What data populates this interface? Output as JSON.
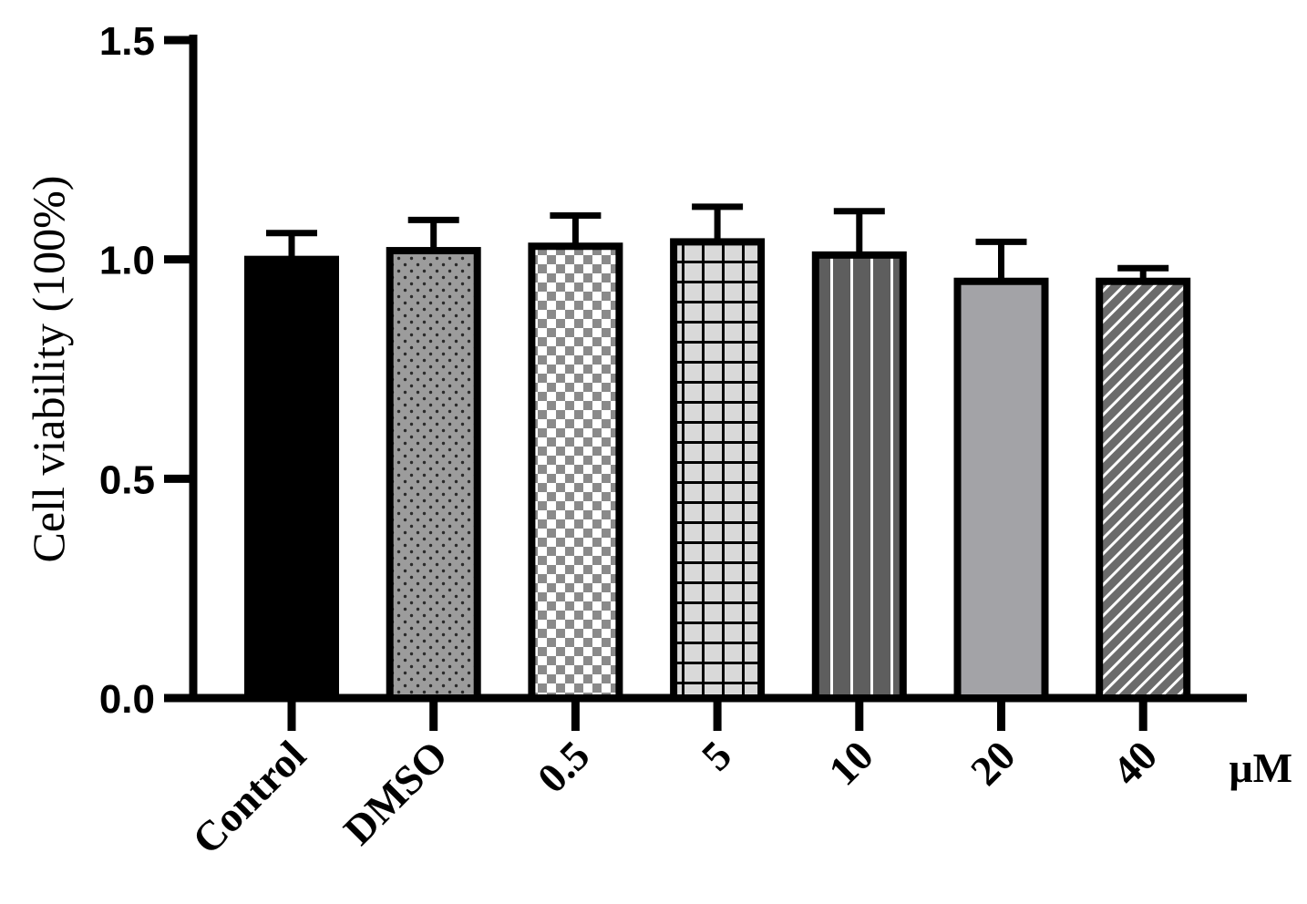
{
  "chart_data": {
    "type": "bar",
    "categories": [
      "Control",
      "DMSO",
      "0.5",
      "5",
      "10",
      "20",
      "40"
    ],
    "values": [
      1.0,
      1.02,
      1.03,
      1.04,
      1.01,
      0.95,
      0.95
    ],
    "errors": [
      0.06,
      0.07,
      0.07,
      0.08,
      0.1,
      0.09,
      0.03
    ],
    "ylabel": "Cell viability (100%)",
    "xlabel": "",
    "x_unit": "μM",
    "ylim": [
      0,
      1.5
    ],
    "yticks": [
      "0.0",
      "0.5",
      "1.0",
      "1.5"
    ],
    "grid": false,
    "bar_fills": [
      "solid-black",
      "dots",
      "checker",
      "grid",
      "vertical-stripes",
      "solid-gray",
      "diagonal-stripes"
    ],
    "colors": {
      "outline": "#000000",
      "dots_bg": "#9c9c9c",
      "checker_dark": "#8a8a8a",
      "grid_bg": "#d9d9d9",
      "stripes_bg": "#5e5e5e",
      "gray": "#a3a3a7",
      "diag_bg": "#6b6b6b"
    }
  }
}
